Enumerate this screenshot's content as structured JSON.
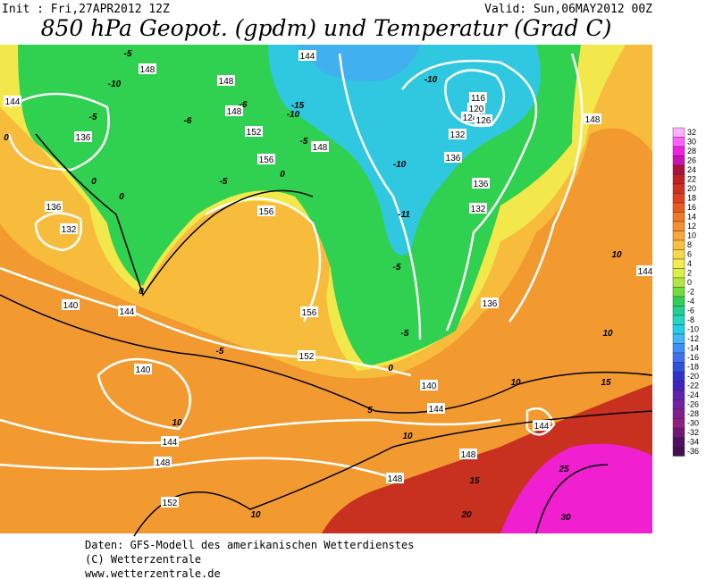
{
  "header": {
    "init": "Init : Fri,27APR2012 12Z",
    "valid": "Valid: Sun,06MAY2012 00Z",
    "title": "850 hPa Geopot. (gpdm) und Temperatur (Grad C)"
  },
  "colorbar": {
    "labels": [
      "32",
      "30",
      "28",
      "26",
      "24",
      "22",
      "20",
      "18",
      "16",
      "14",
      "12",
      "10",
      "8",
      "6",
      "4",
      "2",
      "0",
      "-2",
      "-4",
      "-6",
      "-8",
      "-10",
      "-12",
      "-14",
      "-16",
      "-18",
      "-20",
      "-22",
      "-24",
      "-26",
      "-28",
      "-30",
      "-32",
      "-34",
      "-36"
    ],
    "colors": [
      "#ffb0ff",
      "#ff60ff",
      "#f020e0",
      "#d010b0",
      "#b01040",
      "#c02020",
      "#d03020",
      "#e04020",
      "#e85a20",
      "#f07828",
      "#f59030",
      "#f8a838",
      "#f9c040",
      "#f8d84a",
      "#f2ec50",
      "#d8f040",
      "#b0e840",
      "#70dc40",
      "#30d050",
      "#20d090",
      "#20d8c0",
      "#20d0e8",
      "#40b8f8",
      "#4090f8",
      "#4070f0",
      "#3050e0",
      "#3030d0",
      "#4020c0",
      "#6020b0",
      "#7020a0",
      "#802090",
      "#902080",
      "#701870",
      "#501060",
      "#401050"
    ]
  },
  "map": {
    "geopotential_labels": [
      "148",
      "144",
      "136",
      "148",
      "148",
      "152",
      "156",
      "156",
      "148",
      "136",
      "132",
      "140",
      "144",
      "156",
      "152",
      "140",
      "144",
      "148",
      "152",
      "148",
      "148",
      "140",
      "144",
      "144",
      "136",
      "132",
      "136",
      "136",
      "132",
      "116",
      "120",
      "124",
      "126",
      "148",
      "144",
      "144"
    ],
    "temperature_labels": [
      "-5",
      "-10",
      "-10",
      "-5",
      "-6",
      "-6",
      "-15",
      "-10",
      "-5",
      "-5",
      "0",
      "0",
      "0",
      "0",
      "-10",
      "-11",
      "-5",
      "-5",
      "-5",
      "0",
      "5",
      "10",
      "10",
      "10",
      "10",
      "10",
      "15",
      "15",
      "20",
      "25",
      "30",
      "10",
      "0"
    ]
  },
  "footer": {
    "lines": [
      "Daten: GFS-Modell des amerikanischen Wetterdienstes",
      "(C) Wetterzentrale",
      "www.wetterzentrale.de"
    ]
  }
}
